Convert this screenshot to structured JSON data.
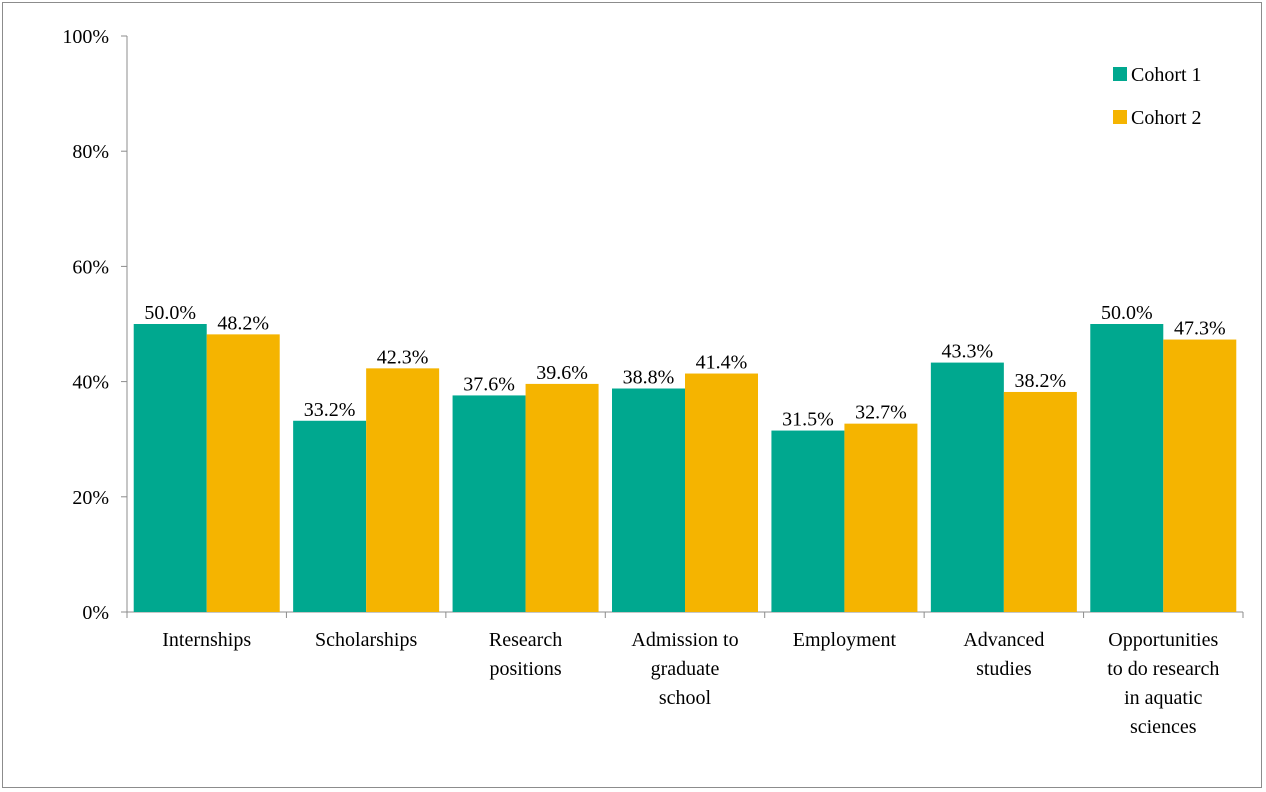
{
  "chart_data": {
    "type": "bar",
    "title": "",
    "xlabel": "",
    "ylabel": "",
    "ylim": [
      0,
      100
    ],
    "yticks": [
      0,
      20,
      40,
      60,
      80,
      100
    ],
    "ytick_labels": [
      "0%",
      "20%",
      "40%",
      "60%",
      "80%",
      "100%"
    ],
    "grid": false,
    "legend_position": "top-right",
    "categories": [
      [
        "Internships"
      ],
      [
        "Scholarships"
      ],
      [
        "Research",
        "positions"
      ],
      [
        "Admission to",
        "graduate",
        "school"
      ],
      [
        "Employment"
      ],
      [
        "Advanced",
        "studies"
      ],
      [
        "Opportunities",
        "to do research",
        "in aquatic",
        "sciences"
      ]
    ],
    "series": [
      {
        "name": "Cohort 1",
        "color": "#00A88F",
        "values": [
          50.0,
          33.2,
          37.6,
          38.8,
          31.5,
          43.3,
          50.0
        ],
        "labels": [
          "50.0%",
          "33.2%",
          "37.6%",
          "38.8%",
          "31.5%",
          "43.3%",
          "50.0%"
        ]
      },
      {
        "name": "Cohort 2",
        "color": "#F5B400",
        "values": [
          48.2,
          42.3,
          39.6,
          41.4,
          32.7,
          38.2,
          47.3
        ],
        "labels": [
          "48.2%",
          "42.3%",
          "39.6%",
          "41.4%",
          "32.7%",
          "38.2%",
          "47.3%"
        ]
      }
    ]
  }
}
